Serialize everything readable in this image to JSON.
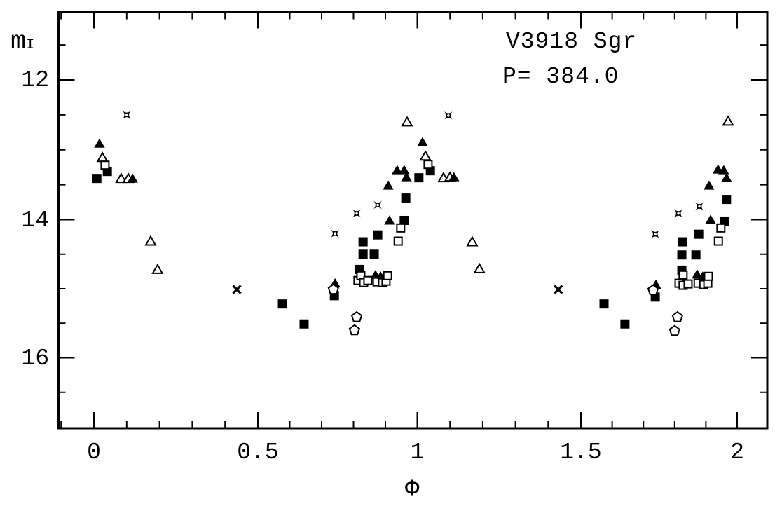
{
  "figure": {
    "star_name": "V3918 Sgr",
    "period_label": "P= 384.0",
    "y_axis_label": "m",
    "y_axis_label_subscript": "I",
    "x_axis_label": "Φ"
  },
  "style": {
    "ink": "#000000",
    "paper": "#ffffff"
  },
  "chart_data": {
    "type": "scatter",
    "title": "V3918 Sgr",
    "annotation": "P= 384.0",
    "xlabel": "Φ",
    "ylabel": "m_I",
    "xlim": [
      -0.11,
      2.1
    ],
    "ylim": [
      17.0,
      11.0
    ],
    "y_inverted": true,
    "grid": false,
    "legend": "none",
    "x_major_ticks": [
      0,
      0.5,
      1,
      1.5,
      2
    ],
    "x_tick_labels": [
      "0",
      "0.5",
      "1",
      "1.5",
      "2"
    ],
    "x_minor_step": 0.1,
    "x_minor_range": [
      -0.1,
      2.0
    ],
    "y_major_ticks": [
      12,
      14,
      16
    ],
    "y_tick_labels": [
      "12",
      "14",
      "16"
    ],
    "y_minor_step": 0.5,
    "y_minor_range": [
      11.5,
      16.5
    ],
    "series": [
      {
        "name": "open-triangle",
        "marker": "open-triangle",
        "points": [
          [
            0.026,
            13.11
          ],
          [
            0.083,
            13.41
          ],
          [
            0.105,
            13.41
          ],
          [
            0.173,
            14.31
          ],
          [
            0.194,
            14.72
          ],
          [
            0.968,
            12.6
          ],
          [
            1.025,
            13.09
          ],
          [
            1.08,
            13.4
          ],
          [
            1.1,
            13.39
          ],
          [
            1.168,
            14.32
          ],
          [
            1.19,
            14.71
          ],
          [
            1.971,
            12.59
          ]
        ]
      },
      {
        "name": "filled-triangle",
        "marker": "filled-triangle",
        "points": [
          [
            0.017,
            12.91
          ],
          [
            0.118,
            13.41
          ],
          [
            0.742,
            14.92
          ],
          [
            0.869,
            14.8
          ],
          [
            0.885,
            14.82
          ],
          [
            0.909,
            13.51
          ],
          [
            0.913,
            14.01
          ],
          [
            0.937,
            13.29
          ],
          [
            0.959,
            13.29
          ],
          [
            0.966,
            13.39
          ],
          [
            1.016,
            12.89
          ],
          [
            1.112,
            13.39
          ],
          [
            1.74,
            14.94
          ],
          [
            1.872,
            14.79
          ],
          [
            1.89,
            14.82
          ],
          [
            1.91,
            13.51
          ],
          [
            1.915,
            14.0
          ],
          [
            1.939,
            13.28
          ],
          [
            1.957,
            13.29
          ],
          [
            1.966,
            13.4
          ]
        ]
      },
      {
        "name": "filled-square",
        "marker": "filled-square",
        "points": [
          [
            0.009,
            13.41
          ],
          [
            0.041,
            13.31
          ],
          [
            0.577,
            15.22
          ],
          [
            0.645,
            15.51
          ],
          [
            0.74,
            15.1
          ],
          [
            0.819,
            14.72
          ],
          [
            0.83,
            14.32
          ],
          [
            0.83,
            14.5
          ],
          [
            0.865,
            14.5
          ],
          [
            0.876,
            14.22
          ],
          [
            0.959,
            14.01
          ],
          [
            0.964,
            13.69
          ],
          [
            1.005,
            13.4
          ],
          [
            1.04,
            13.3
          ],
          [
            1.574,
            15.22
          ],
          [
            1.641,
            15.51
          ],
          [
            1.738,
            15.12
          ],
          [
            1.823,
            14.51
          ],
          [
            1.823,
            14.73
          ],
          [
            1.825,
            14.32
          ],
          [
            1.868,
            14.51
          ],
          [
            1.877,
            14.21
          ],
          [
            1.96,
            14.02
          ],
          [
            1.966,
            13.71
          ]
        ]
      },
      {
        "name": "star",
        "marker": "star4",
        "points": [
          [
            0.1,
            12.5
          ],
          [
            0.742,
            14.2
          ],
          [
            0.81,
            13.91
          ],
          [
            0.876,
            13.79
          ],
          [
            1.095,
            12.51
          ],
          [
            1.738,
            14.21
          ],
          [
            1.812,
            13.91
          ],
          [
            1.879,
            13.81
          ]
        ]
      },
      {
        "name": "cross",
        "marker": "cross",
        "points": [
          [
            0.436,
            15.01
          ],
          [
            1.431,
            15.01
          ]
        ]
      },
      {
        "name": "open-square",
        "marker": "open-square",
        "points": [
          [
            0.034,
            13.22
          ],
          [
            0.814,
            14.88
          ],
          [
            0.823,
            14.81
          ],
          [
            0.832,
            14.91
          ],
          [
            0.845,
            14.88
          ],
          [
            0.874,
            14.9
          ],
          [
            0.891,
            14.91
          ],
          [
            0.902,
            14.89
          ],
          [
            0.907,
            14.81
          ],
          [
            0.94,
            14.31
          ],
          [
            0.948,
            14.12
          ],
          [
            1.033,
            13.21
          ],
          [
            1.814,
            14.92
          ],
          [
            1.827,
            14.8
          ],
          [
            1.827,
            14.95
          ],
          [
            1.843,
            14.93
          ],
          [
            1.875,
            14.92
          ],
          [
            1.893,
            14.94
          ],
          [
            1.906,
            14.92
          ],
          [
            1.908,
            14.82
          ],
          [
            1.94,
            14.31
          ],
          [
            1.948,
            14.12
          ]
        ]
      },
      {
        "name": "pentagon",
        "marker": "open-pentagon",
        "points": [
          [
            0.737,
            15.01
          ],
          [
            0.803,
            15.6
          ],
          [
            0.81,
            15.41
          ],
          [
            1.731,
            15.02
          ],
          [
            1.8,
            15.61
          ],
          [
            1.809,
            15.41
          ]
        ]
      }
    ]
  }
}
